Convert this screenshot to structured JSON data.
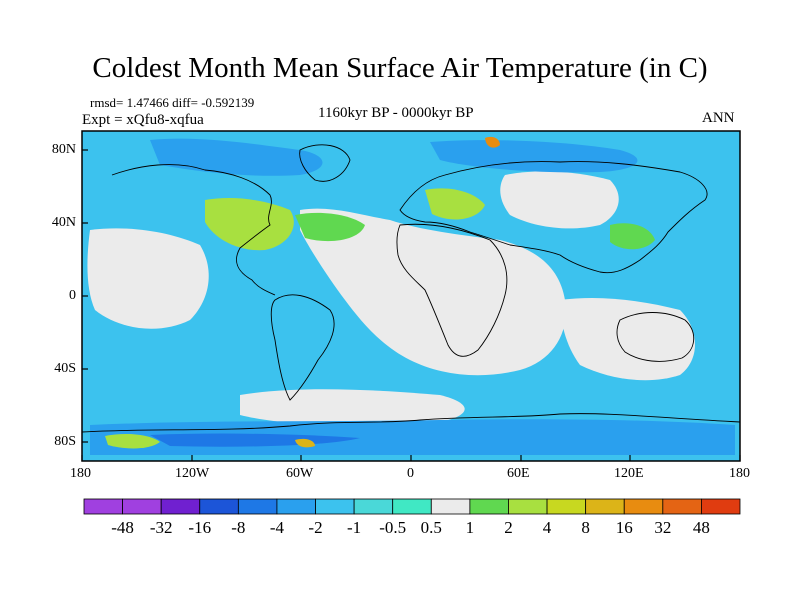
{
  "title": "Coldest Month Mean Surface Air Temperature (in C)",
  "stats": "rmsd= 1.47466  diff= -0.592139",
  "expt": "Expt = xQfu8-xqfua",
  "period": "1160kyr BP - 0000kyr BP",
  "season": "ANN",
  "x_ticks": [
    "180",
    "120W",
    "60W",
    "0",
    "60E",
    "120E",
    "180"
  ],
  "y_ticks": [
    "80N",
    "40N",
    "0",
    "40S",
    "80S"
  ],
  "colorbar": {
    "colors": [
      "#a040e0",
      "#7020d0",
      "#1c55d8",
      "#1e78e6",
      "#2aa0ee",
      "#3cc2ee",
      "#4ad8d8",
      "#40e8c4",
      "#ebebeb",
      "#60d850",
      "#a8e040",
      "#c8d820",
      "#dcb418",
      "#e88c10",
      "#e46414",
      "#e03c10"
    ],
    "labels": [
      "-48",
      "-32",
      "-16",
      "-8",
      "-4",
      "-2",
      "-1",
      "-0.5",
      "0.5",
      "1",
      "2",
      "4",
      "8",
      "16",
      "32",
      "48"
    ]
  }
}
